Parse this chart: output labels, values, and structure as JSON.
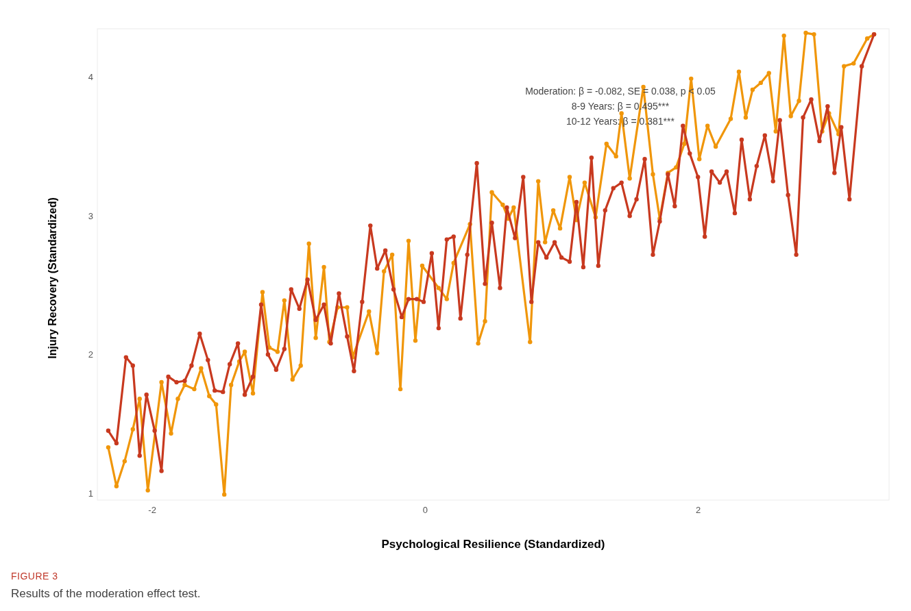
{
  "chart_data": {
    "type": "line",
    "xlabel": "Psychological Resilience (Standardized)",
    "ylabel": "Injury Recovery (Standardized)",
    "xlim": [
      -2.4,
      3.4
    ],
    "ylim": [
      0.95,
      4.35
    ],
    "xticks": [
      -2,
      0,
      2
    ],
    "yticks": [
      1,
      2,
      3,
      4
    ],
    "grid": false,
    "marker": "circle",
    "line_style": "solid",
    "annotations": [
      "Moderation: β = -0.082, SE = 0.038, p < 0.05",
      "8-9 Years: β = 0.495***",
      "10-12 Years: β = 0.381***",
      "FIGURE 3",
      "Results of the moderation effect test."
    ],
    "series": [
      {
        "color": "#f0960a",
        "x": [
          -2.32,
          -2.26,
          -2.2,
          -2.14,
          -2.09,
          -2.03,
          -1.93,
          -1.86,
          -1.81,
          -1.76,
          -1.69,
          -1.64,
          -1.58,
          -1.53,
          -1.47,
          -1.42,
          -1.36,
          -1.32,
          -1.26,
          -1.19,
          -1.14,
          -1.08,
          -1.03,
          -0.97,
          -0.91,
          -0.85,
          -0.8,
          -0.74,
          -0.7,
          -0.64,
          -0.57,
          -0.53,
          -0.41,
          -0.35,
          -0.3,
          -0.24,
          -0.18,
          -0.12,
          -0.07,
          -0.02,
          0.1,
          0.16,
          0.21,
          0.33,
          0.39,
          0.44,
          0.49,
          0.57,
          0.61,
          0.65,
          0.77,
          0.83,
          0.88,
          0.94,
          0.99,
          1.06,
          1.11,
          1.17,
          1.25,
          1.33,
          1.4,
          1.44,
          1.5,
          1.6,
          1.67,
          1.72,
          1.78,
          1.84,
          1.9,
          1.95,
          2.01,
          2.07,
          2.13,
          2.24,
          2.3,
          2.35,
          2.4,
          2.46,
          2.52,
          2.57,
          2.63,
          2.68,
          2.74,
          2.79,
          2.85,
          2.91,
          2.96,
          3.03,
          3.07,
          3.14,
          3.24,
          3.29
        ],
        "values": [
          1.33,
          1.05,
          1.23,
          1.46,
          1.68,
          1.02,
          1.8,
          1.43,
          1.68,
          1.78,
          1.75,
          1.9,
          1.7,
          1.64,
          0.99,
          1.78,
          1.95,
          2.02,
          1.72,
          2.45,
          2.05,
          2.02,
          2.39,
          1.82,
          1.92,
          2.8,
          2.12,
          2.63,
          2.09,
          2.34,
          2.34,
          1.98,
          2.31,
          2.01,
          2.6,
          2.72,
          1.75,
          2.82,
          2.1,
          2.64,
          2.48,
          2.4,
          2.66,
          2.94,
          2.08,
          2.24,
          3.17,
          3.08,
          2.98,
          3.06,
          2.09,
          3.25,
          2.81,
          3.04,
          2.91,
          3.28,
          2.97,
          3.24,
          2.99,
          3.52,
          3.43,
          3.74,
          3.27,
          3.93,
          3.3,
          2.98,
          3.31,
          3.35,
          3.52,
          3.99,
          3.41,
          3.65,
          3.5,
          3.7,
          4.04,
          3.71,
          3.91,
          3.96,
          4.03,
          3.61,
          4.3,
          3.72,
          3.83,
          4.32,
          4.31,
          3.61,
          3.74,
          3.59,
          4.08,
          4.1,
          4.28,
          4.31
        ]
      },
      {
        "color": "#c8391f",
        "x": [
          -2.32,
          -2.26,
          -2.19,
          -2.14,
          -2.09,
          -2.04,
          -1.98,
          -1.93,
          -1.88,
          -1.82,
          -1.76,
          -1.71,
          -1.65,
          -1.59,
          -1.54,
          -1.48,
          -1.43,
          -1.37,
          -1.32,
          -1.26,
          -1.2,
          -1.15,
          -1.09,
          -1.03,
          -0.98,
          -0.92,
          -0.86,
          -0.8,
          -0.74,
          -0.69,
          -0.63,
          -0.57,
          -0.52,
          -0.46,
          -0.4,
          -0.35,
          -0.29,
          -0.23,
          -0.17,
          -0.12,
          -0.06,
          -0.01,
          0.05,
          0.1,
          0.16,
          0.21,
          0.26,
          0.31,
          0.38,
          0.44,
          0.49,
          0.55,
          0.6,
          0.66,
          0.72,
          0.78,
          0.83,
          0.89,
          0.95,
          1.0,
          1.06,
          1.11,
          1.16,
          1.22,
          1.27,
          1.32,
          1.38,
          1.44,
          1.5,
          1.55,
          1.61,
          1.67,
          1.72,
          1.78,
          1.83,
          1.89,
          1.94,
          2.0,
          2.05,
          2.1,
          2.16,
          2.21,
          2.27,
          2.32,
          2.38,
          2.43,
          2.49,
          2.55,
          2.6,
          2.66,
          2.72,
          2.77,
          2.83,
          2.89,
          2.95,
          3.0,
          3.05,
          3.11,
          3.2,
          3.29
        ],
        "values": [
          1.45,
          1.36,
          1.98,
          1.92,
          1.27,
          1.71,
          1.45,
          1.16,
          1.84,
          1.8,
          1.81,
          1.92,
          2.15,
          1.96,
          1.74,
          1.73,
          1.93,
          2.08,
          1.71,
          1.84,
          2.36,
          2.0,
          1.89,
          2.04,
          2.47,
          2.33,
          2.54,
          2.25,
          2.36,
          2.08,
          2.44,
          2.13,
          1.88,
          2.38,
          2.93,
          2.62,
          2.75,
          2.47,
          2.27,
          2.4,
          2.4,
          2.38,
          2.73,
          2.19,
          2.83,
          2.85,
          2.26,
          2.72,
          3.38,
          2.51,
          2.95,
          2.48,
          3.06,
          2.84,
          3.28,
          2.38,
          2.81,
          2.7,
          2.81,
          2.7,
          2.67,
          3.1,
          2.63,
          3.42,
          2.64,
          3.04,
          3.2,
          3.24,
          3.0,
          3.12,
          3.41,
          2.72,
          2.96,
          3.3,
          3.07,
          3.65,
          3.45,
          3.28,
          2.85,
          3.32,
          3.24,
          3.32,
          3.02,
          3.55,
          3.12,
          3.36,
          3.58,
          3.25,
          3.69,
          3.15,
          2.72,
          3.71,
          3.84,
          3.54,
          3.79,
          3.31,
          3.64,
          3.12,
          4.08,
          4.31
        ]
      }
    ]
  }
}
